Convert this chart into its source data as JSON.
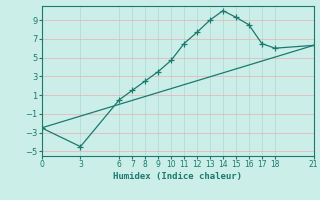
{
  "title": "",
  "xlabel": "Humidex (Indice chaleur)",
  "background_color": "#cceee8",
  "line_color": "#1a7a6e",
  "grid_color_v": "#c8e8e4",
  "grid_color_h": "#e8b0b0",
  "xlim": [
    0,
    21
  ],
  "ylim": [
    -5.5,
    10.5
  ],
  "xticks": [
    0,
    3,
    6,
    7,
    8,
    9,
    10,
    11,
    12,
    13,
    14,
    15,
    16,
    17,
    18,
    21
  ],
  "yticks": [
    -5,
    -3,
    -1,
    1,
    3,
    5,
    7,
    9
  ],
  "line1_x": [
    0,
    3,
    6,
    7,
    8,
    9,
    10,
    11,
    12,
    13,
    14,
    15,
    16,
    17,
    18,
    21
  ],
  "line1_y": [
    -2.5,
    -4.5,
    0.5,
    1.5,
    2.5,
    3.5,
    4.7,
    6.5,
    7.7,
    9.0,
    10.0,
    9.3,
    8.5,
    6.5,
    6.0,
    6.3
  ],
  "line2_x": [
    0,
    21
  ],
  "line2_y": [
    -2.5,
    6.3
  ]
}
